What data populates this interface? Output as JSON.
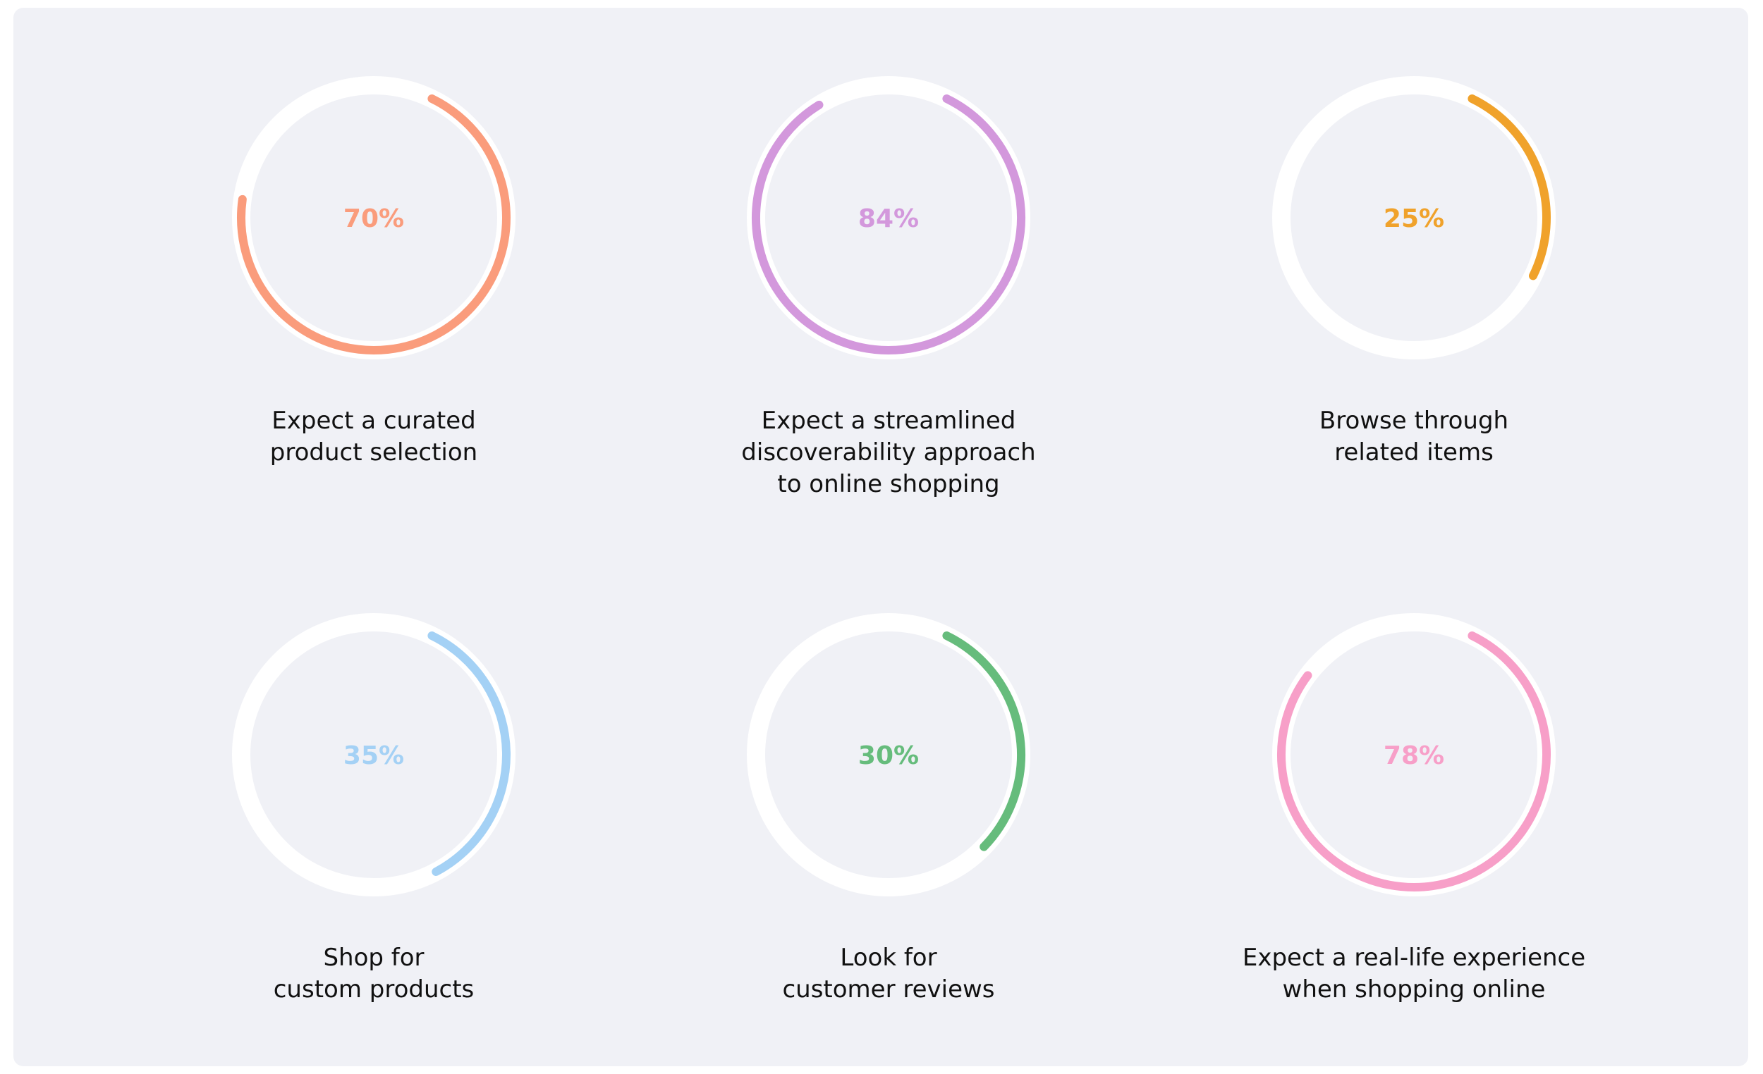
{
  "chart_data": {
    "type": "pie",
    "charts": [
      {
        "value": 70,
        "display": "70%",
        "color": "#fa9c7c",
        "label_lines": [
          "Expect a curated",
          "product selection"
        ]
      },
      {
        "value": 84,
        "display": "84%",
        "color": "#d398dc",
        "label_lines": [
          "Expect a streamlined",
          "discoverability approach",
          "to online shopping"
        ]
      },
      {
        "value": 25,
        "display": "25%",
        "color": "#f0a22b",
        "label_lines": [
          "Browse through",
          "related items"
        ]
      },
      {
        "value": 35,
        "display": "35%",
        "color": "#a4d1f5",
        "label_lines": [
          "Shop for",
          "custom products"
        ]
      },
      {
        "value": 30,
        "display": "30%",
        "color": "#66bc7c",
        "label_lines": [
          "Look for",
          "customer reviews"
        ]
      },
      {
        "value": 78,
        "display": "78%",
        "color": "#f79fc8",
        "label_lines": [
          "Expect a real-life experience",
          "when shopping online"
        ]
      }
    ]
  }
}
